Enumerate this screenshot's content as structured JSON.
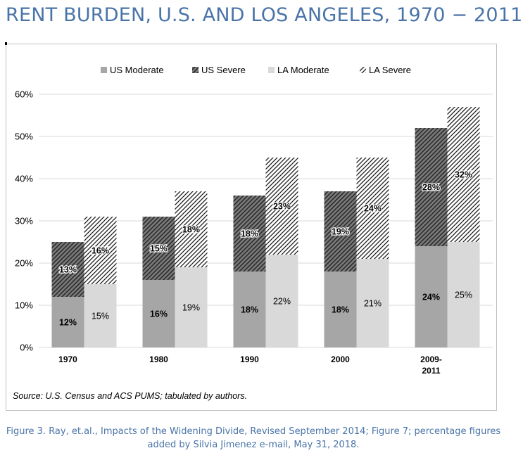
{
  "page": {
    "title": "RENT BURDEN, U.S. AND LOS ANGELES, 1970 − 2011",
    "source_note": "Source: U.S. Census and ACS PUMS; tabulated by authors.",
    "caption_line1": "Figure 3. Ray, et.al., Impacts of the Widening Divide, Revised September 2014; Figure 7; percentage figures",
    "caption_line2": "added by Silvia Jimenez e-mail, May 31, 2018."
  },
  "colors": {
    "title": "#4a74a8",
    "us_moderate": "#a6a6a6",
    "us_severe": "#808080",
    "la_moderate": "#d9d9d9",
    "gridline": "#d9d9d9"
  },
  "chart_data": {
    "type": "bar",
    "stacked": true,
    "grouped": true,
    "categories": [
      "1970",
      "1980",
      "1990",
      "2000",
      "2009-2011"
    ],
    "category_label_lines": [
      [
        "1970"
      ],
      [
        "1980"
      ],
      [
        "1990"
      ],
      [
        "2000"
      ],
      [
        "2009-",
        "2011"
      ]
    ],
    "groups": [
      {
        "name": "US",
        "stack": [
          {
            "name": "US Moderate",
            "values": [
              12,
              16,
              18,
              18,
              24
            ],
            "labels": [
              "12%",
              "16%",
              "18%",
              "18%",
              "24%"
            ],
            "fill": "solid-dark"
          },
          {
            "name": "US Severe",
            "values": [
              13,
              15,
              18,
              19,
              28
            ],
            "labels": [
              "13%",
              "15%",
              "18%",
              "19%",
              "28%"
            ],
            "fill": "hatch-dark"
          }
        ]
      },
      {
        "name": "LA",
        "stack": [
          {
            "name": "LA Moderate",
            "values": [
              15,
              19,
              22,
              21,
              25
            ],
            "labels": [
              "15%",
              "19%",
              "22%",
              "21%",
              "25%"
            ],
            "fill": "solid-light"
          },
          {
            "name": "LA Severe",
            "values": [
              16,
              18,
              23,
              24,
              32
            ],
            "labels": [
              "16%",
              "18%",
              "23%",
              "24%",
              "32%"
            ],
            "fill": "hatch-light"
          }
        ]
      }
    ],
    "legend": [
      "US Moderate",
      "US Severe",
      "LA Moderate",
      "LA Severe"
    ],
    "legend_position": "top-center",
    "ylim": [
      0,
      60
    ],
    "yticks": [
      "0%",
      "10%",
      "20%",
      "30%",
      "40%",
      "50%",
      "60%"
    ],
    "grid": true,
    "xlabel": "",
    "ylabel": ""
  }
}
